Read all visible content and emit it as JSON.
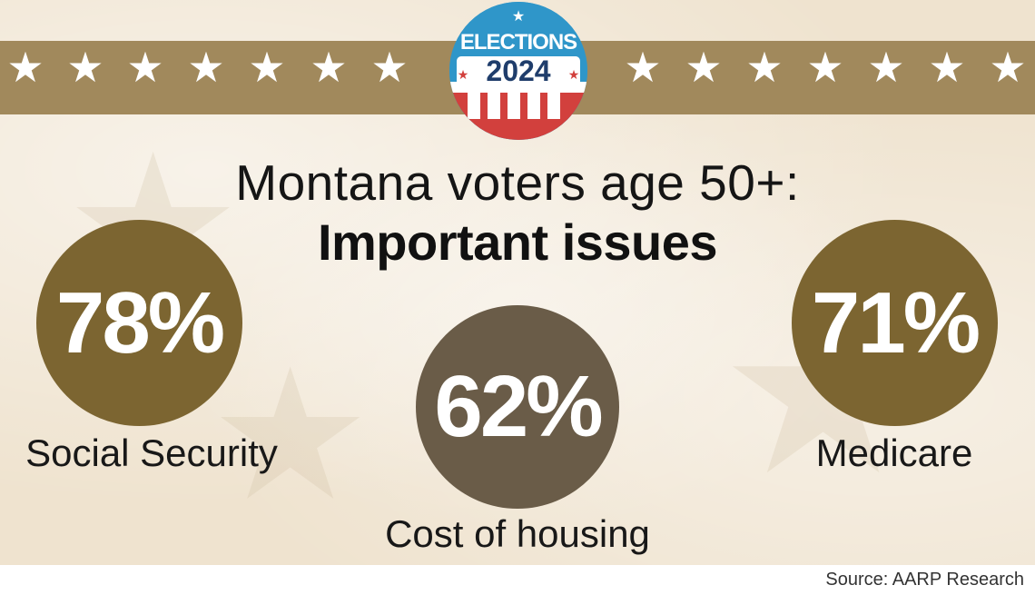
{
  "badge": {
    "line1": "ELECTIONS",
    "line2": "2024",
    "colors": {
      "blue": "#2f96c9",
      "red": "#d2403d",
      "navy": "#1f3d6b",
      "white": "#ffffff"
    }
  },
  "banner": {
    "color": "#a1895c",
    "star_icon": "star-icon"
  },
  "title": {
    "line1": "Montana voters age 50+:",
    "line2": "Important issues"
  },
  "stats": [
    {
      "value": "78%",
      "label": "Social Security",
      "color": "#7c6531"
    },
    {
      "value": "62%",
      "label": "Cost of housing",
      "color": "#6a5c48"
    },
    {
      "value": "71%",
      "label": "Medicare",
      "color": "#7c6531"
    }
  ],
  "source": "Source: AARP Research"
}
